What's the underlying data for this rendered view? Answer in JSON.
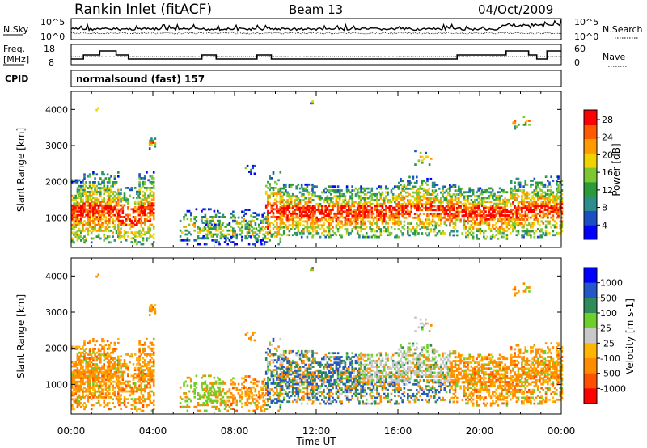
{
  "header": {
    "station": "Rankin Inlet (fitACF)",
    "beam": "Beam 13",
    "date": "04/Oct/2009"
  },
  "top_panels": {
    "nsky_label": "N.Sky",
    "nsky_ticks": [
      "10^5",
      "10^0"
    ],
    "nsearch_label": "N.Search",
    "nsearch_ticks": [
      "10^5",
      "10^0"
    ],
    "freq_label_1": "Freq.",
    "freq_label_2": "[MHz]",
    "freq_ticks": [
      "18",
      "8"
    ],
    "nave_label": "Nave",
    "nave_ticks": [
      "60",
      "0"
    ],
    "cpid_label": "CPID",
    "cpid_value": "normalsound (fast) 157"
  },
  "colors": {
    "power_scale": [
      "#0000ff",
      "#1a4fc4",
      "#2e8c8c",
      "#2a9a3a",
      "#7dc832",
      "#f0d200",
      "#ff9b00",
      "#ff5a00",
      "#ff0000"
    ],
    "velocity_scale": [
      "#0000ff",
      "#2456c8",
      "#2e8c5a",
      "#6ecf2a",
      "#c8c8c8",
      "#ffb400",
      "#ff8c00",
      "#ff5000",
      "#ff0000"
    ]
  },
  "chart_data": [
    {
      "type": "heatmap",
      "name": "Power",
      "ylabel": "Slant Range [km]",
      "xlabel": "",
      "ylim": [
        180,
        4500
      ],
      "xlim_hours": [
        0,
        24
      ],
      "yticks": [
        "1000",
        "2000",
        "3000",
        "4000"
      ],
      "colorbar_label": "Power [dB]",
      "colorbar_ticks": [
        "28",
        "24",
        "20",
        "16",
        "12",
        "8",
        "4"
      ]
    },
    {
      "type": "heatmap",
      "name": "Velocity",
      "ylabel": "Slant Range [km]",
      "xlabel": "Time UT",
      "ylim": [
        180,
        4500
      ],
      "xlim_hours": [
        0,
        24
      ],
      "xticks": [
        "00:00",
        "04:00",
        "08:00",
        "12:00",
        "16:00",
        "20:00",
        "00:00"
      ],
      "yticks": [
        "1000",
        "2000",
        "3000",
        "4000"
      ],
      "colorbar_label": "Velocity [m s-1]",
      "colorbar_ticks": [
        "1000",
        "500",
        "100",
        "25",
        "-25",
        "-100",
        "-500",
        "-1000"
      ]
    }
  ]
}
